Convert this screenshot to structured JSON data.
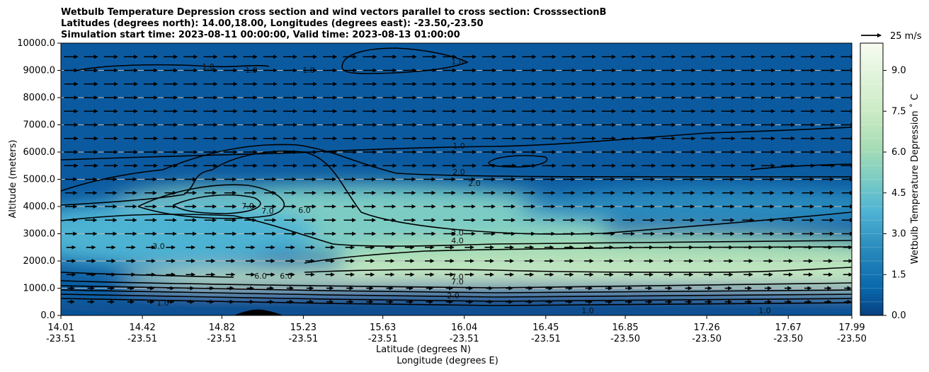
{
  "chart_data": {
    "type": "contour",
    "title_lines": [
      "Wetbulb Temperature Depression cross section and wind vectors parallel to cross section: CrosssectionB",
      "Latitudes (degrees north): 14.00,18.00, Longitudes (degrees east): -23.50,-23.50",
      "Simulation start time: 2023-08-11 00:00:00, Valid time: 2023-08-13 01:00:00"
    ],
    "ylabel": "Altitude (meters)",
    "xlabel_lines": [
      "Latitude (degrees N)",
      "Longitude (degrees E)"
    ],
    "ylim": [
      0,
      10000
    ],
    "y_ticks": [
      "0.0",
      "1000.0",
      "2000.0",
      "3000.0",
      "4000.0",
      "5000.0",
      "6000.0",
      "7000.0",
      "8000.0",
      "9000.0",
      "10000.0"
    ],
    "x_ticks": [
      {
        "lat": "14.01",
        "lon": "-23.51"
      },
      {
        "lat": "14.42",
        "lon": "-23.51"
      },
      {
        "lat": "14.82",
        "lon": "-23.51"
      },
      {
        "lat": "15.23",
        "lon": "-23.51"
      },
      {
        "lat": "15.63",
        "lon": "-23.51"
      },
      {
        "lat": "16.04",
        "lon": "-23.51"
      },
      {
        "lat": "16.45",
        "lon": "-23.51"
      },
      {
        "lat": "16.85",
        "lon": "-23.50"
      },
      {
        "lat": "17.26",
        "lon": "-23.50"
      },
      {
        "lat": "17.67",
        "lon": "-23.50"
      },
      {
        "lat": "17.99",
        "lon": "-23.50"
      }
    ],
    "xlim": [
      14.01,
      17.99
    ],
    "grid": "horizontal",
    "colorbar": {
      "label": "Wetbulb Temperature Depression ˚ C",
      "ticks": [
        "0.0",
        "1.5",
        "3.0",
        "4.5",
        "6.0",
        "7.5",
        "9.0"
      ],
      "range": [
        0,
        10
      ],
      "colormap": "GnBu_r"
    },
    "quiver_key": {
      "label": "25 m/s"
    },
    "contour_labels": [
      "1.0",
      "1.0",
      "1.0",
      "1.0",
      "1.0",
      "2.0",
      "2.0",
      "3.0",
      "4.0",
      "6.0",
      "7.0",
      "7.0",
      "3.0",
      "6.0",
      "6.0",
      "7.0",
      "7.0",
      "2.0",
      "1.0",
      "1.0",
      "1.0"
    ],
    "field_regions": [
      {
        "center": [
          14.85,
          4000
        ],
        "rx": 0.6,
        "ry": 700,
        "value": 7.2
      },
      {
        "center": [
          15.5,
          3500
        ],
        "rx": 1.3,
        "ry": 1300,
        "value": 5.2
      },
      {
        "center": [
          17.0,
          2100
        ],
        "rx": 1.6,
        "ry": 900,
        "value": 7.0
      },
      {
        "center": [
          16.5,
          1400
        ],
        "rx": 2.2,
        "ry": 500,
        "value": 7.5
      },
      {
        "center": [
          14.5,
          3000
        ],
        "rx": 0.8,
        "ry": 1200,
        "value": 4.0
      },
      {
        "center": [
          17.3,
          4000
        ],
        "rx": 1.0,
        "ry": 700,
        "value": 3.5
      },
      {
        "center": [
          16.0,
          800
        ],
        "rx": 2.5,
        "ry": 350,
        "value": 2.0
      },
      {
        "center": [
          16.0,
          300
        ],
        "rx": 2.5,
        "ry": 300,
        "value": 1.0
      }
    ]
  }
}
